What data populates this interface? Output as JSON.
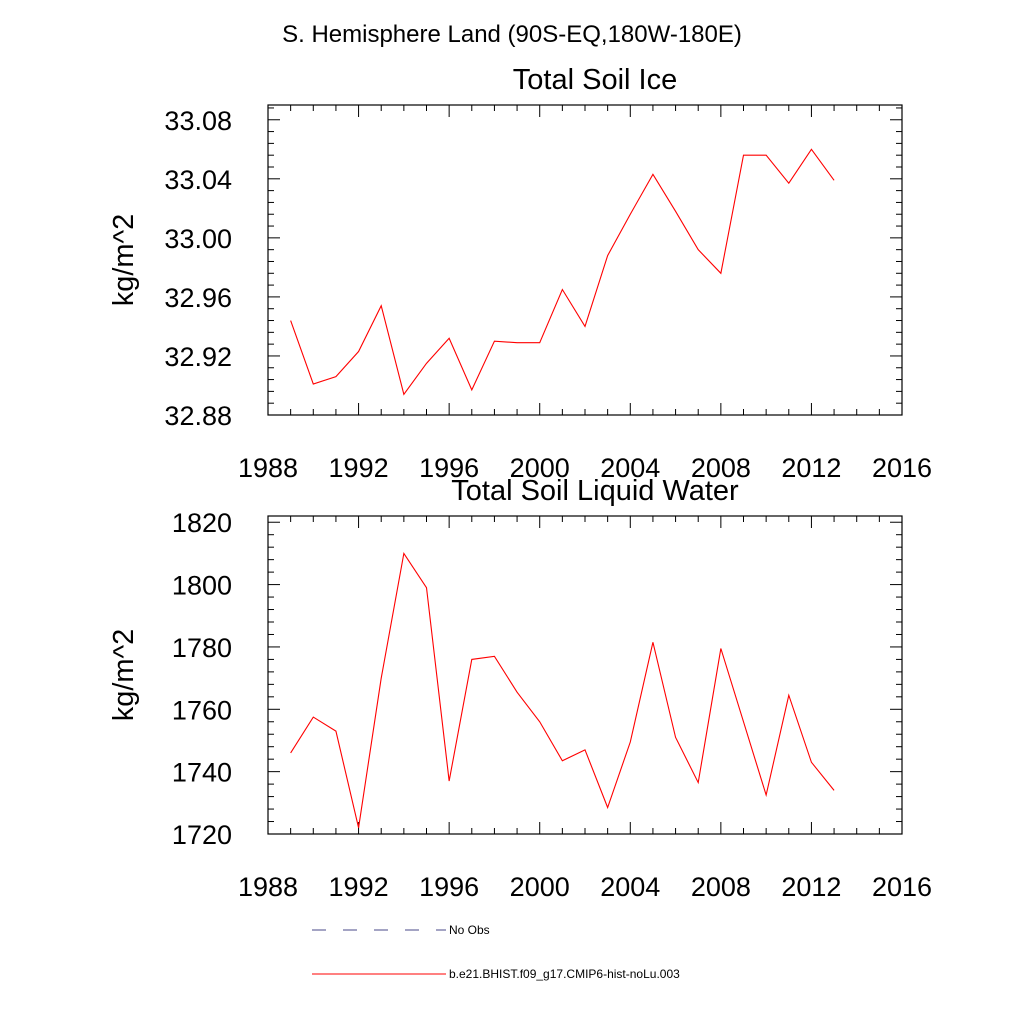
{
  "suptitle": "S. Hemisphere Land (90S-EQ,180W-180E)",
  "colors": {
    "series": "#ff0000",
    "obs": "#4a4a8a",
    "axis": "#000000"
  },
  "chart_data": [
    {
      "type": "line",
      "title": "Total Soil Ice",
      "xlabel": "",
      "ylabel": "kg/m^2",
      "xlim": [
        1988,
        2016
      ],
      "ylim": [
        32.88,
        33.09
      ],
      "x_ticks": [
        "1988",
        "1992",
        "1996",
        "2000",
        "2004",
        "2008",
        "2012",
        "2016"
      ],
      "y_ticks": [
        "32.88",
        "32.92",
        "32.96",
        "33.00",
        "33.04",
        "33.08"
      ],
      "x": [
        1989,
        1990,
        1991,
        1992,
        1993,
        1994,
        1995,
        1996,
        1997,
        1998,
        1999,
        2000,
        2001,
        2002,
        2003,
        2004,
        2005,
        2006,
        2007,
        2008,
        2009,
        2010,
        2011,
        2012,
        2013
      ],
      "series": [
        {
          "values": [
            32.944,
            32.901,
            32.906,
            32.923,
            32.954,
            32.894,
            32.915,
            32.932,
            32.897,
            32.93,
            32.929,
            32.929,
            32.965,
            32.94,
            32.988,
            33.016,
            33.043,
            33.018,
            32.992,
            32.976,
            33.056,
            33.056,
            33.037,
            33.06,
            33.039
          ]
        }
      ]
    },
    {
      "type": "line",
      "title": "Total Soil Liquid Water",
      "xlabel": "",
      "ylabel": "kg/m^2",
      "xlim": [
        1988,
        2016
      ],
      "ylim": [
        1720,
        1822
      ],
      "x_ticks": [
        "1988",
        "1992",
        "1996",
        "2000",
        "2004",
        "2008",
        "2012",
        "2016"
      ],
      "y_ticks": [
        "1720",
        "1740",
        "1760",
        "1780",
        "1800",
        "1820"
      ],
      "x": [
        1989,
        1990,
        1991,
        1992,
        1993,
        1994,
        1995,
        1996,
        1997,
        1998,
        1999,
        2000,
        2001,
        2002,
        2003,
        2004,
        2005,
        2006,
        2007,
        2008,
        2009,
        2010,
        2011,
        2012,
        2013
      ],
      "series": [
        {
          "values": [
            1746,
            1757.5,
            1753,
            1722,
            1770,
            1810,
            1799,
            1737,
            1776,
            1777,
            1765.5,
            1756,
            1743.5,
            1747,
            1728.5,
            1749.5,
            1781.5,
            1751,
            1736.5,
            1779.5,
            1756,
            1732.5,
            1764.5,
            1743,
            1734
          ]
        }
      ]
    }
  ],
  "legend": [
    {
      "label": "No Obs",
      "style": "dashed"
    },
    {
      "label": "b.e21.BHIST.f09_g17.CMIP6-hist-noLu.003",
      "style": "solid"
    }
  ]
}
